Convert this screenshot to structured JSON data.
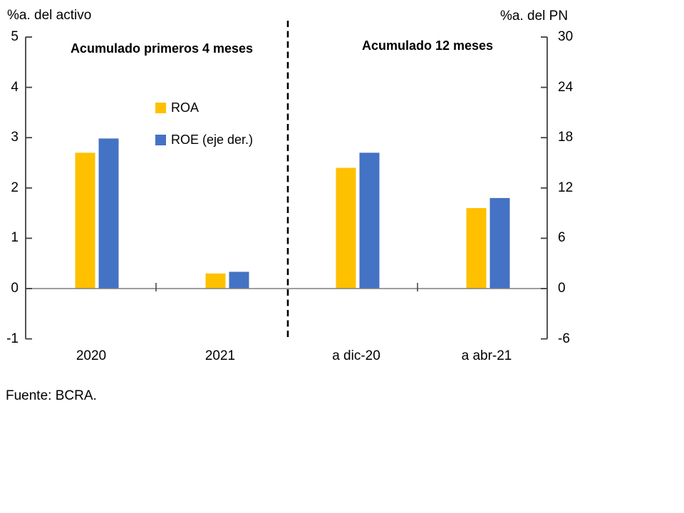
{
  "chart_data": {
    "type": "bar",
    "left_axis": {
      "title": "%a. del activo",
      "min": -1,
      "max": 5,
      "tick_step": 1,
      "ticks": [
        5,
        4,
        3,
        2,
        1,
        0,
        -1
      ]
    },
    "right_axis": {
      "title": "%a. del PN",
      "min": -6,
      "max": 30,
      "tick_step": 6,
      "ticks": [
        30,
        24,
        18,
        12,
        6,
        0,
        -6
      ]
    },
    "panels": [
      {
        "title": "Acumulado primeros 4 meses",
        "categories": [
          "2020",
          "2021"
        ]
      },
      {
        "title": "Acumulado 12 meses",
        "categories": [
          "a dic-20",
          "a abr-21"
        ]
      }
    ],
    "categories": [
      "2020",
      "2021",
      "a dic-20",
      "a abr-21"
    ],
    "series": [
      {
        "name": "ROA",
        "axis": "left",
        "color": "#FFC000",
        "values": [
          2.7,
          0.3,
          2.4,
          1.6
        ]
      },
      {
        "name": "ROE (eje der.)",
        "axis": "right",
        "color": "#4472C4",
        "values": [
          17.9,
          2.0,
          16.2,
          10.8
        ]
      }
    ],
    "legend_position": "inside-left-panel",
    "grid": false,
    "divider": "dashed-vertical-line-between-panels",
    "source": "Fuente: BCRA."
  }
}
